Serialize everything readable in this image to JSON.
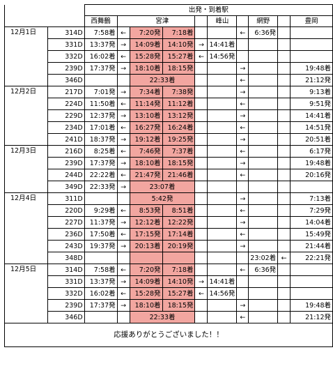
{
  "header": {
    "main": "出発・到着駅",
    "stations": [
      "西舞鶴",
      "宮津",
      "峰山",
      "網野",
      "豊岡"
    ]
  },
  "days": [
    {
      "date": "12月1日",
      "rows": [
        {
          "train": "314D",
          "nishi": "7:58着",
          "a1": "←",
          "mt": "7:20発",
          "mt2": "7:18着",
          "a2": "",
          "mine": "",
          "a3": "←",
          "ami": "6:36発",
          "a4": "",
          "toyo": "",
          "span": ""
        },
        {
          "train": "331D",
          "nishi": "13:37発",
          "a1": "→",
          "mt": "14:09着",
          "mt2": "14:10発",
          "a2": "→",
          "mine": "14:41着",
          "a3": "",
          "ami": "",
          "a4": "",
          "toyo": "",
          "span": ""
        },
        {
          "train": "332D",
          "nishi": "16:02着",
          "a1": "←",
          "mt": "15:28発",
          "mt2": "15:27着",
          "a2": "←",
          "mine": "14:56発",
          "a3": "",
          "ami": "",
          "a4": "",
          "toyo": "",
          "span": ""
        },
        {
          "train": "239D",
          "nishi": "17:37発",
          "a1": "→",
          "mt": "18:10着",
          "mt2": "18:15発",
          "a2": "",
          "mine": "",
          "a3": "→",
          "ami": "",
          "a4": "",
          "toyo": "19:48着",
          "span": ""
        },
        {
          "train": "346D",
          "nishi": "",
          "a1": "",
          "mt": "",
          "mt2": "",
          "a2": "",
          "mine": "",
          "a3": "←",
          "ami": "",
          "a4": "",
          "toyo": "21:12発",
          "span": "22:33着"
        }
      ]
    },
    {
      "date": "12月2日",
      "rows": [
        {
          "train": "217D",
          "nishi": "7:01発",
          "a1": "→",
          "mt": "7:34着",
          "mt2": "7:38発",
          "a2": "",
          "mine": "",
          "a3": "→",
          "ami": "",
          "a4": "",
          "toyo": "9:13着",
          "span": ""
        },
        {
          "train": "224D",
          "nishi": "11:50着",
          "a1": "←",
          "mt": "11:14発",
          "mt2": "11:12着",
          "a2": "",
          "mine": "",
          "a3": "←",
          "ami": "",
          "a4": "",
          "toyo": "9:51発",
          "span": ""
        },
        {
          "train": "229D",
          "nishi": "12:37発",
          "a1": "→",
          "mt": "13:10着",
          "mt2": "13:12発",
          "a2": "",
          "mine": "",
          "a3": "→",
          "ami": "",
          "a4": "",
          "toyo": "14:41着",
          "span": ""
        },
        {
          "train": "234D",
          "nishi": "17:01着",
          "a1": "←",
          "mt": "16:27発",
          "mt2": "16:24着",
          "a2": "",
          "mine": "",
          "a3": "←",
          "ami": "",
          "a4": "",
          "toyo": "14:51発",
          "span": ""
        },
        {
          "train": "241D",
          "nishi": "18:37発",
          "a1": "→",
          "mt": "19:12着",
          "mt2": "19:25発",
          "a2": "",
          "mine": "",
          "a3": "→",
          "ami": "",
          "a4": "",
          "toyo": "20:51着",
          "span": ""
        }
      ]
    },
    {
      "date": "12月3日",
      "rows": [
        {
          "train": "216D",
          "nishi": "8:25着",
          "a1": "←",
          "mt": "7:46発",
          "mt2": "7:37着",
          "a2": "",
          "mine": "",
          "a3": "←",
          "ami": "",
          "a4": "",
          "toyo": "6:17発",
          "span": ""
        },
        {
          "train": "239D",
          "nishi": "17:37発",
          "a1": "→",
          "mt": "18:10着",
          "mt2": "18:15発",
          "a2": "",
          "mine": "",
          "a3": "→",
          "ami": "",
          "a4": "",
          "toyo": "19:48着",
          "span": ""
        },
        {
          "train": "244D",
          "nishi": "22:22着",
          "a1": "←",
          "mt": "21:47発",
          "mt2": "21:46着",
          "a2": "",
          "mine": "",
          "a3": "←",
          "ami": "",
          "a4": "",
          "toyo": "20:16発",
          "span": ""
        },
        {
          "train": "349D",
          "nishi": "22:33発",
          "a1": "→",
          "mt": "",
          "mt2": "",
          "a2": "",
          "mine": "",
          "a3": "",
          "ami": "",
          "a4": "",
          "toyo": "",
          "span": "23:07着"
        }
      ]
    },
    {
      "date": "12月4日",
      "rows": [
        {
          "train": "311D",
          "nishi": "",
          "a1": "",
          "mt": "",
          "mt2": "",
          "a2": "",
          "mine": "",
          "a3": "→",
          "ami": "",
          "a4": "",
          "toyo": "7:13着",
          "span": "5:42発"
        },
        {
          "train": "220D",
          "nishi": "9:29着",
          "a1": "←",
          "mt": "8:53発",
          "mt2": "8:51着",
          "a2": "",
          "mine": "",
          "a3": "←",
          "ami": "",
          "a4": "",
          "toyo": "7:29発",
          "span": ""
        },
        {
          "train": "227D",
          "nishi": "11:37発",
          "a1": "→",
          "mt": "12:12着",
          "mt2": "12:22発",
          "a2": "",
          "mine": "",
          "a3": "→",
          "ami": "",
          "a4": "",
          "toyo": "14:04着",
          "span": ""
        },
        {
          "train": "236D",
          "nishi": "17:50着",
          "a1": "←",
          "mt": "17:15発",
          "mt2": "17:14着",
          "a2": "",
          "mine": "",
          "a3": "←",
          "ami": "",
          "a4": "",
          "toyo": "15:49発",
          "span": ""
        },
        {
          "train": "243D",
          "nishi": "19:37発",
          "a1": "→",
          "mt": "20:13着",
          "mt2": "20:19発",
          "a2": "",
          "mine": "",
          "a3": "→",
          "ami": "",
          "a4": "",
          "toyo": "21:44着",
          "span": ""
        },
        {
          "train": "348D",
          "nishi": "",
          "a1": "",
          "mt": "",
          "mt2": "",
          "a2": "",
          "mine": "",
          "a3": "",
          "ami": "23:02着",
          "a4": "←",
          "toyo": "22:21発",
          "span": ""
        }
      ]
    },
    {
      "date": "12月5日",
      "rows": [
        {
          "train": "314D",
          "nishi": "7:58着",
          "a1": "←",
          "mt": "7:20発",
          "mt2": "7:18着",
          "a2": "",
          "mine": "",
          "a3": "←",
          "ami": "6:36発",
          "a4": "",
          "toyo": "",
          "span": ""
        },
        {
          "train": "331D",
          "nishi": "13:37発",
          "a1": "→",
          "mt": "14:09着",
          "mt2": "14:10発",
          "a2": "→",
          "mine": "14:41着",
          "a3": "",
          "ami": "",
          "a4": "",
          "toyo": "",
          "span": ""
        },
        {
          "train": "332D",
          "nishi": "16:02着",
          "a1": "←",
          "mt": "15:28発",
          "mt2": "15:27着",
          "a2": "←",
          "mine": "14:56発",
          "a3": "",
          "ami": "",
          "a4": "",
          "toyo": "",
          "span": ""
        },
        {
          "train": "239D",
          "nishi": "17:37発",
          "a1": "→",
          "mt": "18:10着",
          "mt2": "18:15発",
          "a2": "",
          "mine": "",
          "a3": "→",
          "ami": "",
          "a4": "",
          "toyo": "19:48着",
          "span": ""
        },
        {
          "train": "346D",
          "nishi": "",
          "a1": "",
          "mt": "",
          "mt2": "",
          "a2": "",
          "mine": "",
          "a3": "←",
          "ami": "",
          "a4": "",
          "toyo": "21:12発",
          "span": "22:33着"
        }
      ]
    }
  ],
  "footer": "応援ありがとうございました！！",
  "highlight_color": "#f2a6a0"
}
